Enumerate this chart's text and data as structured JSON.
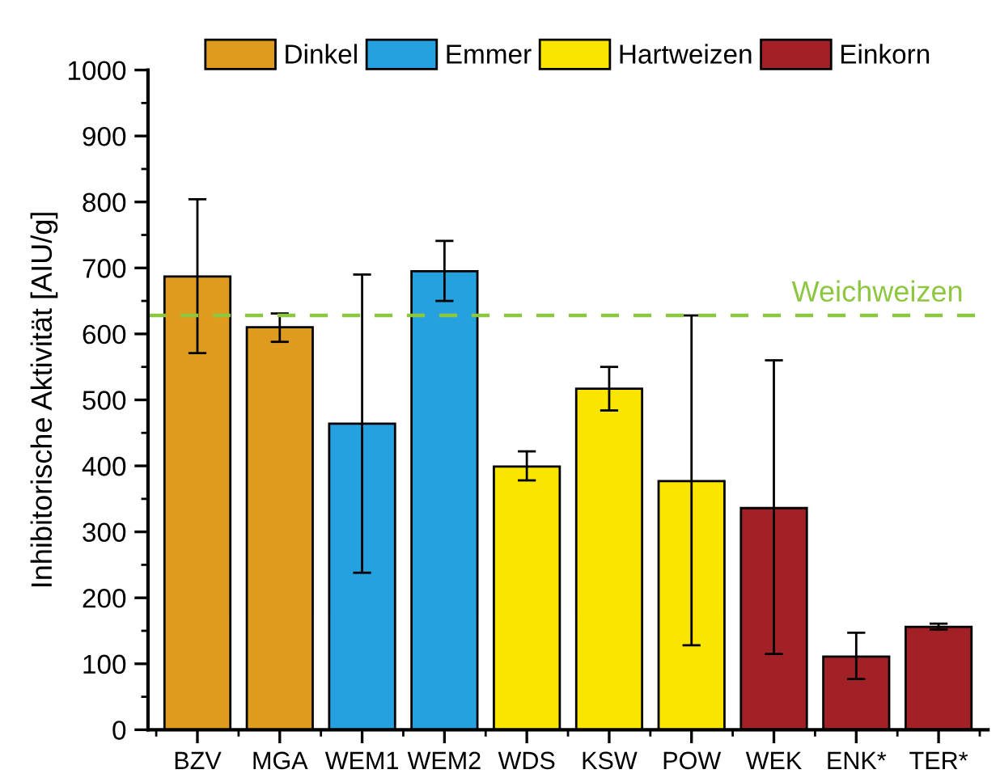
{
  "chart_data": {
    "type": "bar",
    "ylabel": "Inhibitorische Aktivität [AIU/g]",
    "categories": [
      "BZV",
      "MGA",
      "WEM1",
      "WEM2",
      "WDS",
      "KSW",
      "POW",
      "WEK",
      "ENK*",
      "TER*"
    ],
    "series": [
      {
        "name": "Dinkel",
        "color": "#df9b1e",
        "values": [
          687,
          610,
          null,
          null,
          null,
          null,
          null,
          null,
          null,
          null
        ],
        "errors": [
          [
            571,
            804
          ],
          [
            588,
            631
          ],
          null,
          null,
          null,
          null,
          null,
          null,
          null,
          null
        ]
      },
      {
        "name": "Emmer",
        "color": "#26a1df",
        "values": [
          null,
          null,
          464,
          695,
          null,
          null,
          null,
          null,
          null,
          null
        ],
        "errors": [
          null,
          null,
          [
            238,
            690
          ],
          [
            650,
            741
          ],
          null,
          null,
          null,
          null,
          null,
          null
        ]
      },
      {
        "name": "Hartweizen",
        "color": "#fae500",
        "values": [
          null,
          null,
          null,
          null,
          399,
          517,
          377,
          null,
          null,
          null
        ],
        "errors": [
          null,
          null,
          null,
          null,
          [
            378,
            422
          ],
          [
            484,
            550
          ],
          [
            128,
            628
          ],
          null,
          null,
          null
        ]
      },
      {
        "name": "Einkorn",
        "color": "#a12126",
        "values": [
          null,
          null,
          null,
          null,
          null,
          null,
          null,
          336,
          111,
          156
        ],
        "errors": [
          null,
          null,
          null,
          null,
          null,
          null,
          null,
          [
            115,
            560
          ],
          [
            77,
            147
          ],
          [
            152,
            161
          ]
        ]
      }
    ],
    "ylim": [
      0,
      1000
    ],
    "yticks": [
      0,
      {
        "value": 50,
        "label": null
      },
      100,
      {
        "value": 150,
        "label": null
      },
      200,
      {
        "value": 250,
        "label": null
      },
      300,
      {
        "value": 350,
        "label": null
      },
      400,
      {
        "value": 450,
        "label": null
      },
      500,
      {
        "value": 550,
        "label": null
      },
      600,
      {
        "value": 650,
        "label": null
      },
      700,
      {
        "value": 750,
        "label": null
      },
      800,
      {
        "value": 850,
        "label": null
      },
      900,
      {
        "value": 950,
        "label": null
      },
      1000
    ],
    "ref_lines": [
      {
        "axis": "y",
        "value": 628,
        "label": "Weichweizen",
        "color": "#8dc63f",
        "line_style": "dashed"
      }
    ],
    "legend": "top",
    "grid": false
  }
}
